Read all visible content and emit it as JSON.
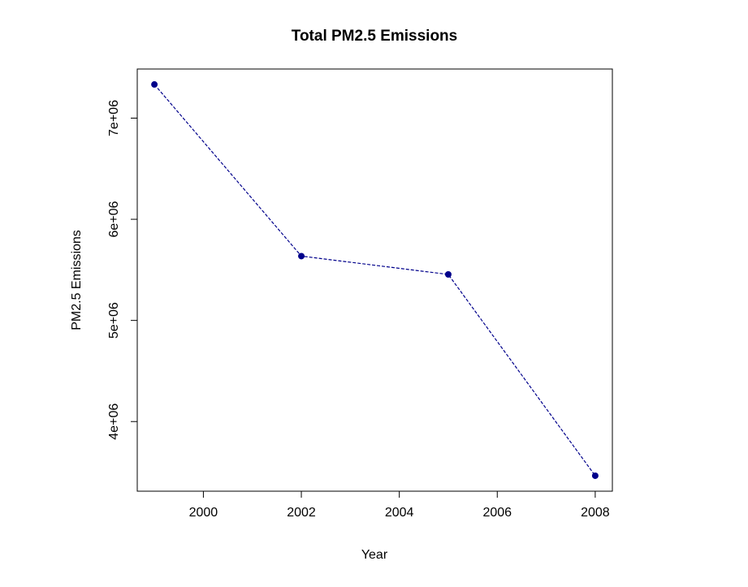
{
  "chart_data": {
    "type": "line",
    "title": "Total PM2.5 Emissions",
    "xlabel": "Year",
    "ylabel": "PM2.5 Emissions",
    "x": [
      1999,
      2002,
      2005,
      2008
    ],
    "series": [
      {
        "values": [
          7332967,
          5635780,
          5454703,
          3464206
        ]
      }
    ],
    "x_ticks": [
      2000,
      2002,
      2004,
      2006,
      2008
    ],
    "x_tick_labels": [
      "2000",
      "2002",
      "2004",
      "2006",
      "2008"
    ],
    "y_ticks": [
      4000000,
      5000000,
      6000000,
      7000000
    ],
    "y_tick_labels": [
      "4e+06",
      "5e+06",
      "6e+06",
      "7e+06"
    ],
    "xlim": [
      1998.65,
      2008.35
    ],
    "ylim": [
      3311496,
      7485677
    ],
    "grid": false,
    "legend": "none",
    "line_style": "dashed",
    "line_color": "#00008b",
    "marker_color": "#00008b"
  }
}
